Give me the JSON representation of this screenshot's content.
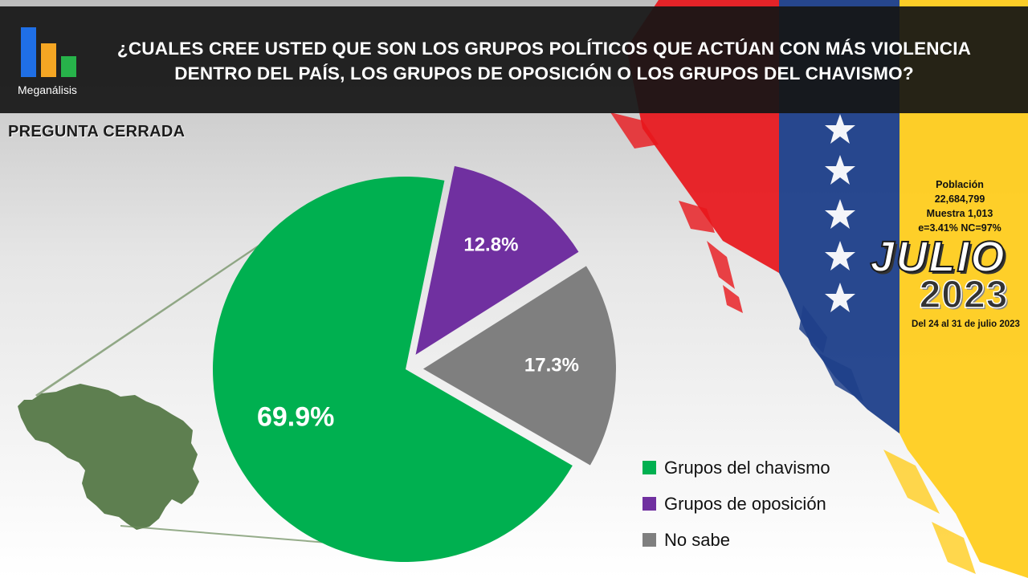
{
  "brand": {
    "name": "Meganálisis"
  },
  "question": "¿CUALES CREE USTED QUE SON LOS GRUPOS POLÍTICOS QUE ACTÚAN CON MÁS VIOLENCIA DENTRO DEL PAÍS, LOS GRUPOS DE OPOSICIÓN O LOS GRUPOS DEL CHAVISMO?",
  "question_type": "PREGUNTA CERRADA",
  "survey": {
    "population_label": "Población",
    "population_value": "22,684,799",
    "sample": "Muestra 1,013",
    "error": "e=3.41%  NC=97%",
    "month": "JULIO",
    "year": "2023",
    "dates": "Del 24 al 31 de julio 2023"
  },
  "colors": {
    "chavismo": "#00b050",
    "oposicion": "#7030a0",
    "no_sabe": "#7f7f7f",
    "map": "#5e7f50",
    "flag_yellow": "#ffcd1f",
    "flag_blue": "#1e3f8a",
    "flag_red": "#e8161b"
  },
  "chart_data": {
    "type": "pie",
    "title": "¿CUALES CREE USTED QUE SON LOS GRUPOS POLÍTICOS QUE ACTÚAN CON MÁS VIOLENCIA DENTRO DEL PAÍS, LOS GRUPOS DE OPOSICIÓN O LOS GRUPOS DEL CHAVISMO?",
    "categories": [
      "Grupos del chavismo",
      "Grupos de oposición",
      "No sabe"
    ],
    "values": [
      69.9,
      12.8,
      17.3
    ],
    "labels": [
      "69.9%",
      "12.8%",
      "17.3%"
    ],
    "legend_position": "bottom-right",
    "exploded": true
  }
}
